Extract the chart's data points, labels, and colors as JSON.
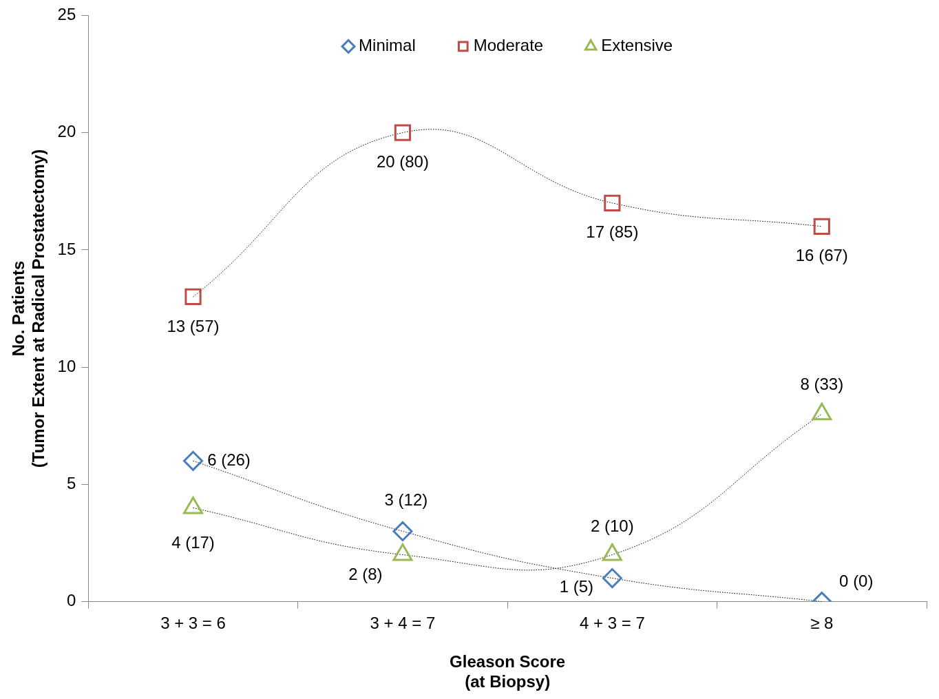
{
  "chart_data": {
    "type": "line",
    "xlabel": "Gleason Score\n(at Biopsy)",
    "ylabel": "No. Patients\n(Tumor Extent at Radical Prostatectomy)",
    "categories": [
      "3 + 3 = 6",
      "3 + 4 = 7",
      "4 + 3 = 7",
      "≥ 8"
    ],
    "series": [
      {
        "name": "Minimal",
        "color": "#4a7ebb",
        "marker": "diamond",
        "values": [
          6,
          3,
          1,
          0
        ],
        "value_labels": [
          "6 (26)",
          "3 (12)",
          "1 (5)",
          "0 (0)"
        ]
      },
      {
        "name": "Moderate",
        "color": "#be4b48",
        "marker": "square",
        "values": [
          13,
          20,
          17,
          16
        ],
        "value_labels": [
          "13 (57)",
          "20 (80)",
          "17 (85)",
          "16 (67)"
        ]
      },
      {
        "name": "Extensive",
        "color": "#98b954",
        "marker": "triangle",
        "values": [
          4,
          2,
          2,
          8
        ],
        "value_labels": [
          "4 (17)",
          "2 (8)",
          "2 (10)",
          "8 (33)"
        ]
      }
    ],
    "ylim": [
      0,
      25
    ],
    "yticks": [
      0,
      5,
      10,
      15,
      20,
      25
    ],
    "grid": false,
    "legend": "top",
    "line_style": "dotted"
  }
}
